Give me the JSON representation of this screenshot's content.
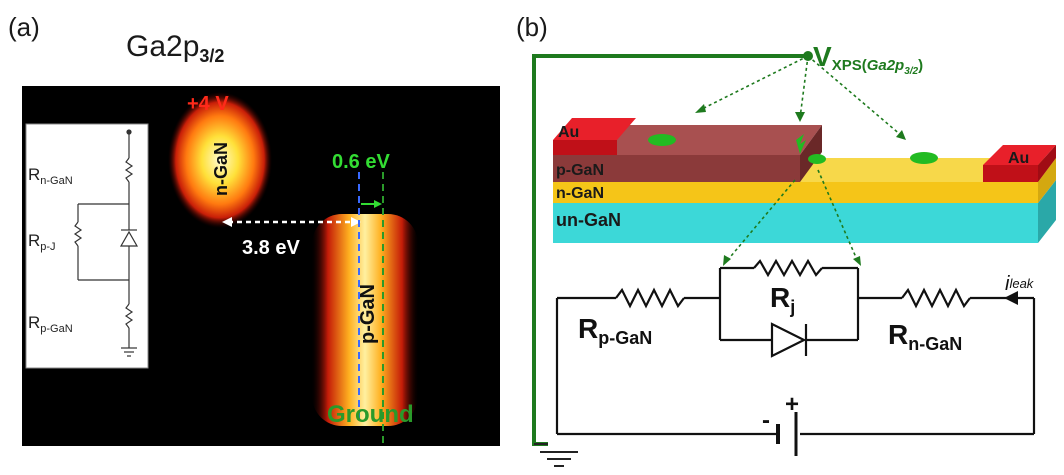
{
  "panel_a": {
    "label": "(a)",
    "title_main": "Ga2p",
    "title_sub": "3/2",
    "voltage_label": "+4 V",
    "ngan_label": "n-GaN",
    "pgan_label": "p-GaN",
    "shift_label": "3.8 eV",
    "small_shift_label": "0.6 eV",
    "ground_label": "Ground",
    "inset": {
      "r_ngan": "R",
      "r_ngan_sub": "n-GaN",
      "r_pj": "R",
      "r_pj_sub": "p-J",
      "r_pgan": "R",
      "r_pgan_sub": "p-GaN"
    },
    "colors": {
      "voltage": "#ff2a1a",
      "small_shift": "#33dd33",
      "ground": "#2a9a2a"
    }
  },
  "panel_b": {
    "label": "(b)",
    "vxps_main": "V",
    "vxps_sub": "XPS(",
    "vxps_sub_italic": "Ga2p",
    "vxps_sub_sub": "3/2",
    "vxps_close": ")",
    "layers": {
      "au_left": "Au",
      "au_right": "Au",
      "pgan": "p-GaN",
      "ngan": "n-GaN",
      "ungan": "un-GaN"
    },
    "circuit": {
      "rj": "R",
      "rj_sub": "j",
      "rpgan": "R",
      "rpgan_sub": "p-GaN",
      "rngan": "R",
      "rngan_sub": "n-GaN",
      "ileak": "i",
      "ileak_sub": "leak",
      "plus": "+",
      "minus": "-"
    },
    "colors": {
      "wire": "#1e7a1e",
      "au": "#e8202a",
      "pgan": "#8b3a3a",
      "ngan": "#f5c518",
      "ungan": "#3cd8d8"
    }
  }
}
